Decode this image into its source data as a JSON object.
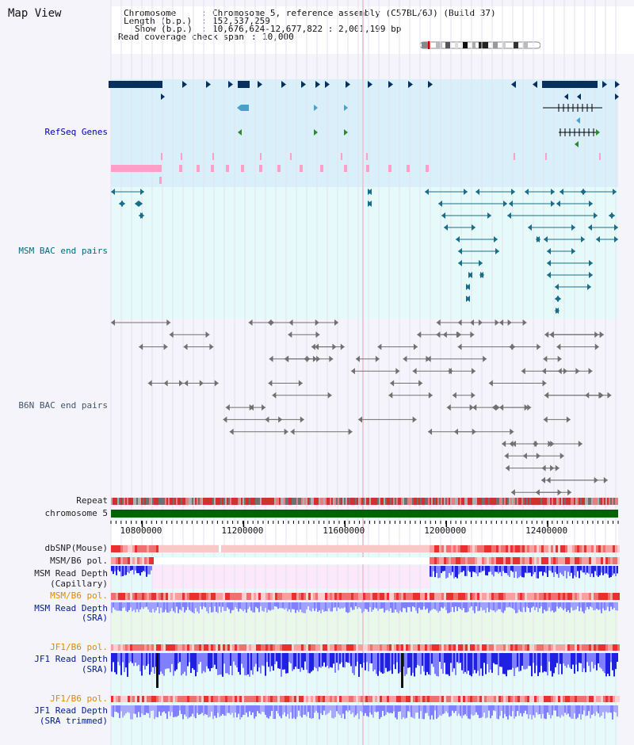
{
  "title": "Map View",
  "info": {
    "chromosome_label": "Chromosome",
    "chromosome_value": "Chromosome 5, reference assembly (C57BL/6J) (Build 37)",
    "length_label": "Length (b.p.)",
    "length_value": "152,537,259",
    "show_label": "Show (b.p.)",
    "show_value": "10,676,624-12,677,822 : 2,001,199 bp",
    "coverage_label": "Read coverage check span",
    "coverage_value": "10,000"
  },
  "tracks": {
    "refseq": "RefSeq Genes",
    "msm_bac": "MSM BAC end pairs",
    "b6n_bac": "B6N BAC end pairs",
    "repeat": "Repeat",
    "chromosome": "chromosome 5",
    "dbsnp": "dbSNP(Mouse)",
    "msm_b6_pol_1": "MSM/B6 pol.",
    "msm_depth_cap_1": "MSM Read Depth",
    "msm_depth_cap_2": "(Capillary)",
    "msm_b6_pol_2": "MSM/B6 pol.",
    "msm_depth_sra_1": "MSM Read Depth",
    "msm_depth_sra_2": "(SRA)",
    "jf1_b6_pol_1": "JF1/B6 pol.",
    "jf1_depth_1": "JF1 Read Depth",
    "jf1_depth_2": "(SRA)",
    "jf1_b6_pol_2": "JF1/B6 pol.",
    "jf1_trim_1": "JF1 Read Depth",
    "jf1_trim_2": "(SRA trimmed)"
  },
  "axis": {
    "ticks": [
      "10800000",
      "11200000",
      "11600000",
      "12000000",
      "12400000"
    ],
    "tick_positions_bp": [
      10800000,
      11200000,
      11600000,
      12000000,
      12400000
    ],
    "range_bp": [
      10676624,
      12677822
    ]
  },
  "colors": {
    "refseq_bg": "#d9f0fa",
    "msm_bac_bg": "#e6fafa",
    "b6n_bac_bg": "#f4f4fa",
    "gene_dark": "#08305e",
    "gene_mid": "#4aa0c8",
    "gene_green": "#2f8a2f",
    "gene_pink": "#ff9fc8",
    "msm_pair": "#1a6e8c",
    "b6n_pair": "#707070",
    "chromosome": "#006400",
    "depth_blue": "#2020e0",
    "depth_light": "#8080ff",
    "pol_red": "#e84848"
  }
}
